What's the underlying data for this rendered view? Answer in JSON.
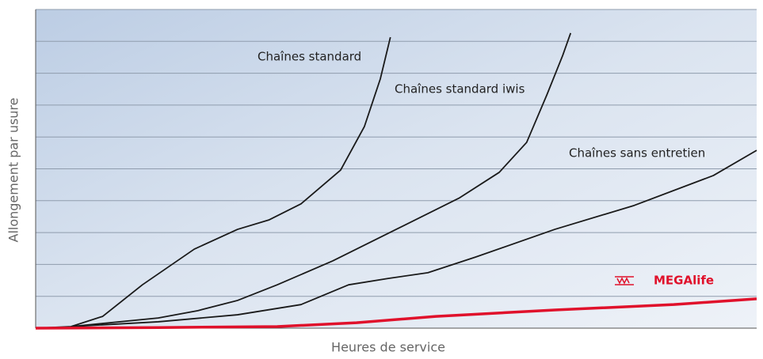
{
  "chart_data": {
    "type": "line",
    "xlabel": "Heures de service",
    "ylabel": "Allongement par usure",
    "xlim": [
      0,
      100
    ],
    "ylim": [
      0,
      10
    ],
    "ygrid": [
      1,
      2,
      3,
      4,
      5,
      6,
      7,
      8,
      9,
      10
    ],
    "grid": true,
    "series": [
      {
        "name": "Chaînes standard",
        "color": "#1a1a1a",
        "x": [
          0,
          4.9,
          9.3,
          14.8,
          22,
          28,
          32.4,
          36.8,
          42.3,
          45.6,
          47.8,
          49.2
        ],
        "values": [
          0,
          0.05,
          0.37,
          1.36,
          2.48,
          3.1,
          3.4,
          3.9,
          4.96,
          6.33,
          7.82,
          9.13
        ]
      },
      {
        "name": "Chaînes standard iwis",
        "color": "#1a1a1a",
        "x": [
          4.9,
          17,
          22.5,
          28,
          33.5,
          41.2,
          50,
          58.8,
          64.3,
          68.1,
          70.9,
          73.1,
          74.2
        ],
        "values": [
          0.05,
          0.32,
          0.55,
          0.87,
          1.36,
          2.11,
          3.1,
          4.09,
          4.89,
          5.83,
          7.32,
          8.56,
          9.26
        ]
      },
      {
        "name": "Chaînes sans entretien",
        "color": "#1a1a1a",
        "x": [
          4.9,
          17,
          28,
          36.8,
          43.4,
          48.9,
          54.4,
          61,
          72,
          83,
          94,
          100
        ],
        "values": [
          0.05,
          0.2,
          0.42,
          0.74,
          1.36,
          1.56,
          1.74,
          2.23,
          3.1,
          3.85,
          4.79,
          5.58
        ]
      },
      {
        "name": "MEGAlife",
        "color": "#e0112b",
        "x": [
          0,
          17,
          33.5,
          44.5,
          55.5,
          72,
          88.5,
          100
        ],
        "values": [
          0,
          0.02,
          0.05,
          0.17,
          0.37,
          0.57,
          0.74,
          0.92
        ]
      }
    ]
  }
}
